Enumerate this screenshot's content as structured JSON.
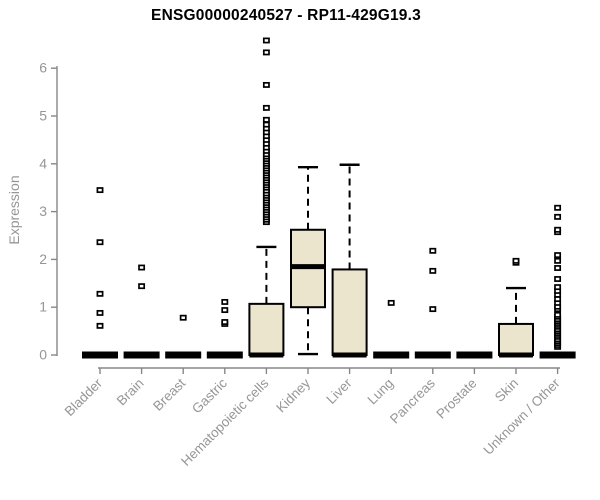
{
  "chart_data": {
    "type": "boxplot",
    "title": "ENSG00000240527 - RP11-429G19.3",
    "ylabel": "Expression",
    "xlabel": "",
    "ylim": [
      0,
      6.8
    ],
    "yticks": [
      0,
      1,
      2,
      3,
      4,
      5,
      6
    ],
    "grid": false,
    "legend": "none",
    "box_fill_color": "#ece5cd",
    "box_stroke_color": "#000000",
    "axis_color": "#878787",
    "tick_label_color": "#969696",
    "title_color": "#000000",
    "categories": [
      "Bladder",
      "Brain",
      "Breast",
      "Gastric",
      "Hematopoietic cells",
      "Kidney",
      "Liver",
      "Lung",
      "Pancreas",
      "Prostate",
      "Skin",
      "Unknown / Other"
    ],
    "series": [
      {
        "category": "Bladder",
        "whisker_low": 0,
        "q1": 0,
        "median": 0,
        "q3": 0,
        "whisker_high": 0,
        "outliers": [
          0.61,
          0.88,
          1.28,
          2.36,
          3.45
        ]
      },
      {
        "category": "Brain",
        "whisker_low": 0,
        "q1": 0,
        "median": 0,
        "q3": 0,
        "whisker_high": 0,
        "outliers": [
          1.44,
          1.83
        ]
      },
      {
        "category": "Breast",
        "whisker_low": 0,
        "q1": 0,
        "median": 0,
        "q3": 0,
        "whisker_high": 0,
        "outliers": [
          0.78
        ]
      },
      {
        "category": "Gastric",
        "whisker_low": 0,
        "q1": 0,
        "median": 0,
        "q3": 0,
        "whisker_high": 0,
        "outliers": [
          0.65,
          0.69,
          0.94,
          1.11
        ]
      },
      {
        "category": "Hematopoietic cells",
        "whisker_low": 0,
        "q1": 0,
        "median": 0,
        "q3": 1.07,
        "whisker_high": 2.26,
        "outliers": [
          2.78,
          2.83,
          2.88,
          2.93,
          2.98,
          3.03,
          3.08,
          3.13,
          3.18,
          3.23,
          3.28,
          3.33,
          3.38,
          3.44,
          3.5,
          3.55,
          3.6,
          3.65,
          3.7,
          3.75,
          3.8,
          3.85,
          3.9,
          3.95,
          4.0,
          4.05,
          4.1,
          4.15,
          4.2,
          4.27,
          4.34,
          4.42,
          4.5,
          4.58,
          4.66,
          4.74,
          4.82,
          4.92,
          5.17,
          5.65,
          6.33,
          6.58
        ]
      },
      {
        "category": "Kidney",
        "whisker_low": 0.02,
        "q1": 1.0,
        "median": 1.85,
        "q3": 2.62,
        "whisker_high": 3.93,
        "outliers": []
      },
      {
        "category": "Liver",
        "whisker_low": 0,
        "q1": 0,
        "median": 0,
        "q3": 1.79,
        "whisker_high": 3.98,
        "outliers": []
      },
      {
        "category": "Lung",
        "whisker_low": 0,
        "q1": 0,
        "median": 0,
        "q3": 0,
        "whisker_high": 0,
        "outliers": [
          1.09
        ]
      },
      {
        "category": "Pancreas",
        "whisker_low": 0,
        "q1": 0,
        "median": 0,
        "q3": 0,
        "whisker_high": 0,
        "outliers": [
          0.96,
          1.76,
          2.18
        ]
      },
      {
        "category": "Prostate",
        "whisker_low": 0,
        "q1": 0,
        "median": 0,
        "q3": 0,
        "whisker_high": 0,
        "outliers": []
      },
      {
        "category": "Skin",
        "whisker_low": 0,
        "q1": 0,
        "median": 0,
        "q3": 0.65,
        "whisker_high": 1.4,
        "outliers": [
          1.93,
          1.97
        ]
      },
      {
        "category": "Unknown / Other",
        "whisker_low": 0,
        "q1": 0,
        "median": 0,
        "q3": 0,
        "whisker_high": 0,
        "outliers": [
          0.17,
          0.21,
          0.25,
          0.29,
          0.33,
          0.38,
          0.42,
          0.46,
          0.5,
          0.54,
          0.59,
          0.63,
          0.67,
          0.71,
          0.75,
          0.8,
          0.84,
          0.96,
          1.01,
          1.09,
          1.17,
          1.26,
          1.34,
          1.42,
          1.59,
          1.82,
          1.97,
          2.09,
          2.57,
          2.62,
          2.89,
          3.08
        ]
      }
    ]
  }
}
